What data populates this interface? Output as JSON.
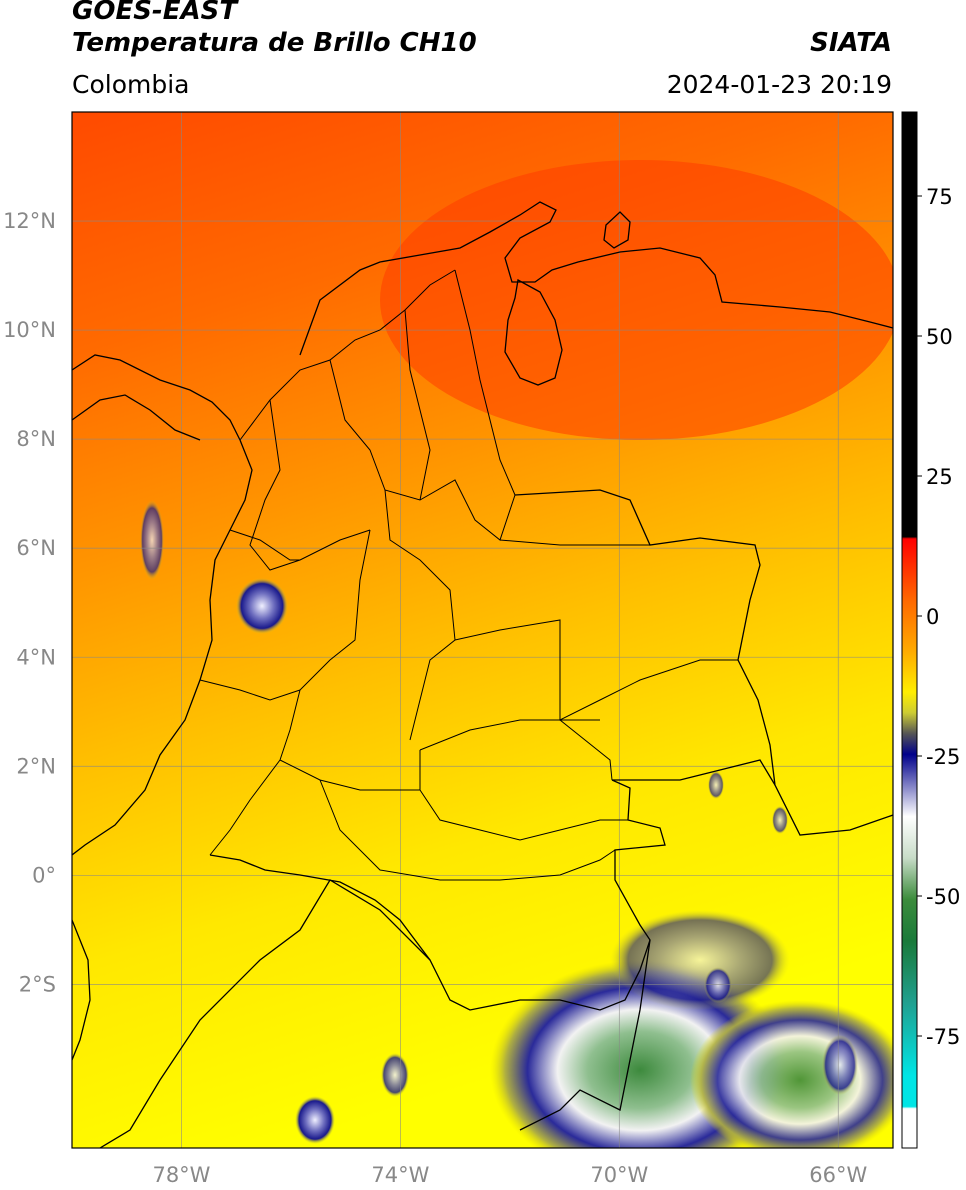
{
  "header": {
    "satellite": "GOES-EAST",
    "product": "Temperatura de Brillo CH10",
    "region": "Colombia",
    "agency": "SIATA",
    "datetime": "2024-01-23 20:19"
  },
  "map": {
    "lon_range": [
      -80,
      -65
    ],
    "lat_range": [
      -5,
      14
    ],
    "lat_ticks": [
      {
        "value": 12,
        "label": "12°N"
      },
      {
        "value": 10,
        "label": "10°N"
      },
      {
        "value": 8,
        "label": "8°N"
      },
      {
        "value": 6,
        "label": "6°N"
      },
      {
        "value": 4,
        "label": "4°N"
      },
      {
        "value": 2,
        "label": "2°N"
      },
      {
        "value": 0,
        "label": "0°"
      },
      {
        "value": -2,
        "label": "2°S"
      }
    ],
    "lon_ticks": [
      {
        "value": -78,
        "label": "78°W"
      },
      {
        "value": -74,
        "label": "74°W"
      },
      {
        "value": -70,
        "label": "70°W"
      },
      {
        "value": -66,
        "label": "66°W"
      }
    ],
    "grid": true,
    "colors": {
      "warm": "#ff4500",
      "mid": "#ff9900",
      "cool": "#ffff00",
      "cloud": "#1a1a8c"
    }
  },
  "colorbar": {
    "range": [
      -95,
      90
    ],
    "ticks": [
      {
        "value": 75,
        "label": "75"
      },
      {
        "value": 50,
        "label": "50"
      },
      {
        "value": 25,
        "label": "25"
      },
      {
        "value": 0,
        "label": "0"
      },
      {
        "value": -25,
        "label": "-25"
      },
      {
        "value": -50,
        "label": "-50"
      },
      {
        "value": -75,
        "label": "-75"
      }
    ]
  }
}
